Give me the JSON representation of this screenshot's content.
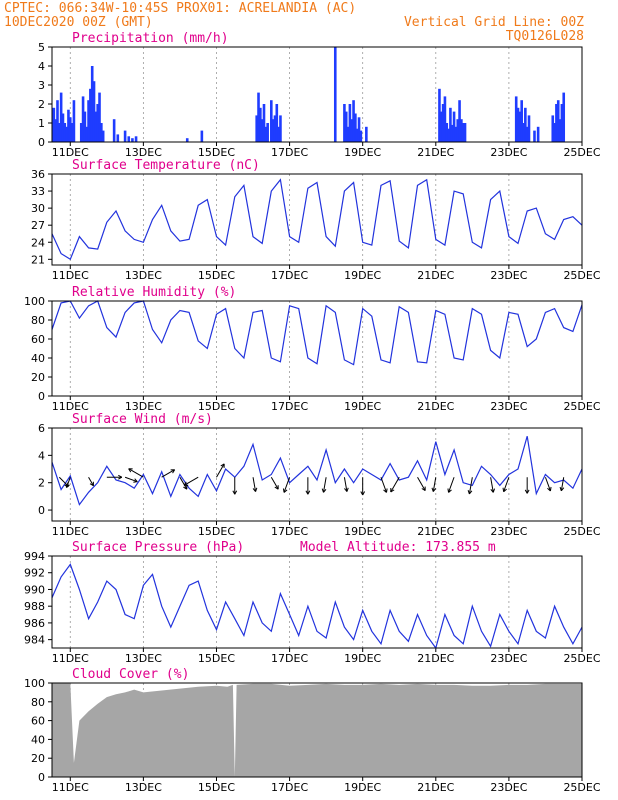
{
  "header": {
    "line1_left": "CPTEC:   066:34W-10:45S   PROX01: ACRELANDIA (AC)",
    "line2_left": "10DEC2020 00Z (GMT)",
    "line2_right": "Vertical Grid Line: 00Z",
    "line3_right": "TQ0126L028"
  },
  "colors": {
    "header": "#f07a1a",
    "panel_title": "#e0008c",
    "line_series": "#2233dd",
    "bar_series": "#1f3cff",
    "cloud_fill": "#a6a6a6"
  },
  "x_axis": {
    "tick_labels": [
      "11DEC",
      "13DEC",
      "15DEC",
      "17DEC",
      "19DEC",
      "21DEC",
      "23DEC",
      "25DEC"
    ],
    "tick_days": [
      1,
      3,
      5,
      7,
      9,
      11,
      13,
      15
    ],
    "range_days": [
      0.5,
      15
    ]
  },
  "chart_data": [
    {
      "id": "precip",
      "type": "bar",
      "title": "Precipitation  (mm/h)",
      "ylim": [
        0,
        5
      ],
      "yticks": [
        0,
        1,
        2,
        3,
        4,
        5
      ],
      "x": [
        0.55,
        0.6,
        0.65,
        0.7,
        0.75,
        0.8,
        0.85,
        0.9,
        0.95,
        1.0,
        1.05,
        1.1,
        1.3,
        1.35,
        1.4,
        1.45,
        1.5,
        1.55,
        1.6,
        1.65,
        1.7,
        1.75,
        1.8,
        1.85,
        1.9,
        2.2,
        2.3,
        2.5,
        2.6,
        2.7,
        2.8,
        4.2,
        4.6,
        6.1,
        6.15,
        6.2,
        6.25,
        6.3,
        6.35,
        6.4,
        6.5,
        6.55,
        6.6,
        6.65,
        6.7,
        6.75,
        8.25,
        8.5,
        8.55,
        8.6,
        8.65,
        8.7,
        8.75,
        8.8,
        8.85,
        8.9,
        8.95,
        9.1,
        11.1,
        11.15,
        11.2,
        11.25,
        11.3,
        11.35,
        11.4,
        11.45,
        11.5,
        11.55,
        11.6,
        11.65,
        11.7,
        11.75,
        11.8,
        13.2,
        13.25,
        13.3,
        13.35,
        13.4,
        13.45,
        13.5,
        13.55,
        13.7,
        13.8,
        14.2,
        14.25,
        14.3,
        14.35,
        14.4,
        14.45,
        14.5
      ],
      "values": [
        1.8,
        1.2,
        2.2,
        1.0,
        2.6,
        1.5,
        1.0,
        0.8,
        1.7,
        1.3,
        1.0,
        2.2,
        1.0,
        2.4,
        1.6,
        0.8,
        2.2,
        2.8,
        4.0,
        3.2,
        1.6,
        2.0,
        2.6,
        1.0,
        0.6,
        1.2,
        0.4,
        0.6,
        0.3,
        0.2,
        0.3,
        0.2,
        0.6,
        1.4,
        2.6,
        1.8,
        1.2,
        2.0,
        0.8,
        1.0,
        2.2,
        1.2,
        1.4,
        2.0,
        0.8,
        1.4,
        5.0,
        2.0,
        1.6,
        0.8,
        2.0,
        1.2,
        2.2,
        1.5,
        0.7,
        1.3,
        0.6,
        0.8,
        2.8,
        1.6,
        2.0,
        2.4,
        1.0,
        0.7,
        1.8,
        0.9,
        1.6,
        0.8,
        1.2,
        2.2,
        1.2,
        1.0,
        1.0,
        2.4,
        1.8,
        1.6,
        2.2,
        1.0,
        1.8,
        0.8,
        1.4,
        0.6,
        0.8,
        1.4,
        1.0,
        2.0,
        2.2,
        1.2,
        2.0,
        2.6
      ]
    },
    {
      "id": "temperature",
      "type": "line",
      "title": "Surface Temperature (nC)",
      "ylim": [
        20,
        36
      ],
      "yticks": [
        21,
        24,
        27,
        30,
        33,
        36
      ],
      "x": [
        0.5,
        0.75,
        1.0,
        1.25,
        1.5,
        1.75,
        2.0,
        2.25,
        2.5,
        2.75,
        3.0,
        3.25,
        3.5,
        3.75,
        4.0,
        4.25,
        4.5,
        4.75,
        5.0,
        5.25,
        5.5,
        5.75,
        6.0,
        6.25,
        6.5,
        6.75,
        7.0,
        7.25,
        7.5,
        7.75,
        8.0,
        8.25,
        8.5,
        8.75,
        9.0,
        9.25,
        9.5,
        9.75,
        10.0,
        10.25,
        10.5,
        10.75,
        11.0,
        11.25,
        11.5,
        11.75,
        12.0,
        12.25,
        12.5,
        12.75,
        13.0,
        13.25,
        13.5,
        13.75,
        14.0,
        14.25,
        14.5,
        14.75,
        15.0
      ],
      "values": [
        25.5,
        22.0,
        21.0,
        25.0,
        23.0,
        22.8,
        27.5,
        29.5,
        26.0,
        24.5,
        24.0,
        28.0,
        30.5,
        26.0,
        24.2,
        24.5,
        30.5,
        31.5,
        25.0,
        23.5,
        32.0,
        34.0,
        25.0,
        23.8,
        33.0,
        35.0,
        25.0,
        24.0,
        33.5,
        34.5,
        25.0,
        23.3,
        33.0,
        34.5,
        24.0,
        23.5,
        34.0,
        34.8,
        24.2,
        23.0,
        34.0,
        35.0,
        24.5,
        23.5,
        33.0,
        32.5,
        24.0,
        23.0,
        31.5,
        33.0,
        25.0,
        23.8,
        29.5,
        30.0,
        25.5,
        24.5,
        28.0,
        28.5,
        27.0
      ]
    },
    {
      "id": "humidity",
      "type": "line",
      "title": "Relative Humidity (%)",
      "ylim": [
        0,
        100
      ],
      "yticks": [
        0,
        20,
        40,
        60,
        80,
        100
      ],
      "x": [
        0.5,
        0.75,
        1.0,
        1.25,
        1.5,
        1.75,
        2.0,
        2.25,
        2.5,
        2.75,
        3.0,
        3.25,
        3.5,
        3.75,
        4.0,
        4.25,
        4.5,
        4.75,
        5.0,
        5.25,
        5.5,
        5.75,
        6.0,
        6.25,
        6.5,
        6.75,
        7.0,
        7.25,
        7.5,
        7.75,
        8.0,
        8.25,
        8.5,
        8.75,
        9.0,
        9.25,
        9.5,
        9.75,
        10.0,
        10.25,
        10.5,
        10.75,
        11.0,
        11.25,
        11.5,
        11.75,
        12.0,
        12.25,
        12.5,
        12.75,
        13.0,
        13.25,
        13.5,
        13.75,
        14.0,
        14.25,
        14.5,
        14.75,
        15.0
      ],
      "values": [
        70,
        98,
        100,
        82,
        95,
        100,
        72,
        62,
        88,
        98,
        100,
        70,
        56,
        80,
        90,
        88,
        58,
        50,
        86,
        92,
        50,
        40,
        88,
        90,
        40,
        36,
        95,
        92,
        40,
        34,
        95,
        88,
        38,
        33,
        92,
        84,
        38,
        35,
        94,
        88,
        36,
        35,
        90,
        86,
        40,
        38,
        92,
        86,
        48,
        40,
        88,
        86,
        52,
        60,
        88,
        92,
        72,
        68,
        96
      ]
    },
    {
      "id": "wind",
      "type": "line",
      "title": "Surface Wind (m/s)",
      "ylim": [
        -0.8,
        6
      ],
      "yticks": [
        0,
        2,
        4,
        6
      ],
      "x": [
        0.5,
        0.75,
        1.0,
        1.25,
        1.5,
        1.75,
        2.0,
        2.25,
        2.5,
        2.75,
        3.0,
        3.25,
        3.5,
        3.75,
        4.0,
        4.25,
        4.5,
        4.75,
        5.0,
        5.25,
        5.5,
        5.75,
        6.0,
        6.25,
        6.5,
        6.75,
        7.0,
        7.25,
        7.5,
        7.75,
        8.0,
        8.25,
        8.5,
        8.75,
        9.0,
        9.25,
        9.5,
        9.75,
        10.0,
        10.25,
        10.5,
        10.75,
        11.0,
        11.25,
        11.5,
        11.75,
        12.0,
        12.25,
        12.5,
        12.75,
        13.0,
        13.25,
        13.5,
        13.75,
        14.0,
        14.25,
        14.5,
        14.75,
        15.0
      ],
      "values": [
        3.5,
        1.5,
        2.5,
        0.4,
        1.3,
        2.0,
        3.2,
        2.2,
        2.0,
        1.6,
        2.6,
        1.2,
        2.8,
        1.0,
        2.6,
        1.6,
        1.0,
        2.6,
        1.4,
        3.0,
        2.4,
        3.2,
        4.8,
        2.2,
        2.6,
        3.8,
        2.0,
        2.6,
        3.2,
        2.2,
        4.4,
        2.0,
        3.0,
        2.0,
        3.0,
        2.6,
        2.2,
        3.4,
        2.2,
        2.4,
        3.6,
        2.2,
        5.0,
        2.6,
        4.4,
        2.0,
        1.8,
        3.2,
        2.6,
        1.8,
        2.6,
        3.0,
        5.4,
        1.2,
        2.6,
        2.0,
        2.2,
        1.6,
        3.0
      ],
      "vector_x": [
        0.7,
        1.0,
        1.5,
        2.0,
        2.5,
        3.0,
        3.5,
        4.0,
        4.5,
        5.0,
        5.5,
        6.0,
        6.5,
        7.0,
        7.5,
        8.0,
        8.5,
        9.0,
        9.5,
        10.0,
        10.5,
        11.0,
        11.5,
        12.0,
        12.5,
        13.0,
        13.5,
        14.0,
        14.5
      ],
      "vector_dir_deg": [
        135,
        200,
        150,
        90,
        110,
        300,
        60,
        150,
        240,
        30,
        180,
        170,
        150,
        200,
        180,
        190,
        170,
        180,
        160,
        210,
        150,
        190,
        200,
        190,
        170,
        200,
        180,
        160,
        190
      ],
      "vector_speed": [
        2,
        1.5,
        1.2,
        2.5,
        2,
        3,
        2.5,
        2.2,
        2.8,
        2.6,
        3,
        2.4,
        2.2,
        2.8,
        3,
        2.6,
        2.4,
        3.2,
        2.8,
        3,
        2.6,
        2.4,
        2.8,
        3,
        2.6,
        2.6,
        2.8,
        2.4,
        2.2
      ]
    },
    {
      "id": "pressure",
      "type": "line",
      "title": "Surface Pressure (hPa)",
      "annotation": "Model Altitude: 173.855  m",
      "ylim": [
        983,
        994
      ],
      "yticks": [
        984,
        986,
        988,
        990,
        992,
        994
      ],
      "x": [
        0.5,
        0.75,
        1.0,
        1.25,
        1.5,
        1.75,
        2.0,
        2.25,
        2.5,
        2.75,
        3.0,
        3.25,
        3.5,
        3.75,
        4.0,
        4.25,
        4.5,
        4.75,
        5.0,
        5.25,
        5.5,
        5.75,
        6.0,
        6.25,
        6.5,
        6.75,
        7.0,
        7.25,
        7.5,
        7.75,
        8.0,
        8.25,
        8.5,
        8.75,
        9.0,
        9.25,
        9.5,
        9.75,
        10.0,
        10.25,
        10.5,
        10.75,
        11.0,
        11.25,
        11.5,
        11.75,
        12.0,
        12.25,
        12.5,
        12.75,
        13.0,
        13.25,
        13.5,
        13.75,
        14.0,
        14.25,
        14.5,
        14.75,
        15.0
      ],
      "values": [
        989.0,
        991.5,
        993.0,
        990.0,
        986.5,
        988.5,
        991.0,
        990.0,
        987.0,
        986.5,
        990.5,
        991.8,
        988.0,
        985.5,
        988.0,
        990.5,
        991.0,
        987.5,
        985.2,
        988.5,
        986.5,
        984.5,
        988.5,
        986.0,
        985.0,
        989.5,
        987.0,
        984.5,
        988.0,
        985.0,
        984.2,
        988.5,
        985.5,
        984.0,
        987.5,
        985.0,
        983.5,
        987.5,
        985.0,
        983.8,
        987.0,
        984.5,
        983.0,
        987.0,
        984.5,
        983.5,
        988.0,
        985.0,
        983.2,
        987.0,
        985.0,
        983.5,
        987.5,
        985.0,
        984.2,
        988.0,
        985.5,
        983.5,
        985.5
      ]
    },
    {
      "id": "cloud",
      "type": "area",
      "title": "Cloud Cover (%)",
      "ylim": [
        0,
        100
      ],
      "yticks": [
        0,
        20,
        40,
        60,
        80,
        100
      ],
      "x": [
        0.5,
        0.75,
        1.0,
        1.1,
        1.25,
        1.5,
        1.75,
        2.0,
        2.25,
        2.5,
        2.75,
        3.0,
        3.5,
        4.0,
        4.5,
        5.0,
        5.3,
        5.45,
        5.5,
        5.55,
        6.0,
        6.5,
        7.0,
        7.5,
        8.0,
        8.5,
        9.0,
        9.5,
        10.0,
        10.5,
        11.0,
        11.5,
        12.0,
        12.5,
        13.0,
        13.5,
        14.0,
        14.5,
        15.0
      ],
      "values": [
        100,
        100,
        100,
        15,
        60,
        70,
        78,
        85,
        88,
        90,
        93,
        90,
        92,
        94,
        96,
        97,
        96,
        98,
        0,
        98,
        99,
        99,
        97,
        98,
        99,
        98,
        98,
        99,
        98,
        99,
        98,
        98,
        97,
        97,
        98,
        98,
        99,
        99,
        99
      ]
    }
  ]
}
